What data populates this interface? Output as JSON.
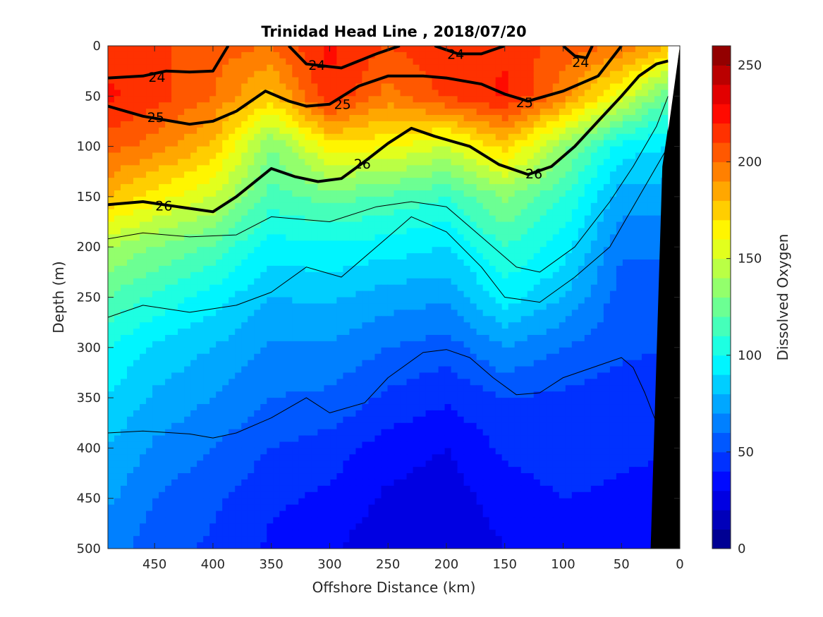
{
  "chart_data": {
    "type": "heatmap",
    "subtype": "filled-contour section",
    "title": "Trinidad Head Line , 2018/07/20",
    "xlabel": "Offshore Distance (km)",
    "ylabel": "Depth (m)",
    "xlim": [
      490,
      0
    ],
    "ylim": [
      0,
      500
    ],
    "x_reversed": true,
    "y_reversed": true,
    "xticks": [
      450,
      400,
      350,
      300,
      250,
      200,
      150,
      100,
      50,
      0
    ],
    "yticks": [
      0,
      50,
      100,
      150,
      200,
      250,
      300,
      350,
      400,
      450,
      500
    ],
    "colorbar": {
      "label": "Dissolved Oxygen",
      "range": [
        0,
        260
      ],
      "ticks": [
        0,
        50,
        100,
        150,
        200,
        250
      ],
      "colormap": "jet",
      "levels": 26
    },
    "oxygen_field": {
      "x": [
        490,
        450,
        400,
        350,
        300,
        250,
        200,
        150,
        100,
        50,
        10
      ],
      "depth": [
        0,
        50,
        100,
        150,
        200,
        250,
        300,
        350,
        400,
        450,
        500
      ],
      "values": [
        [
          215,
          212,
          205,
          200,
          222,
          210,
          218,
          218,
          205,
          200,
          180
        ],
        [
          222,
          215,
          200,
          175,
          220,
          195,
          212,
          222,
          195,
          155,
          120
        ],
        [
          205,
          195,
          178,
          130,
          165,
          162,
          150,
          175,
          135,
          95,
          90
        ],
        [
          180,
          165,
          150,
          115,
          125,
          118,
          110,
          132,
          110,
          75,
          75
        ],
        [
          140,
          130,
          118,
          95,
          98,
          95,
          90,
          110,
          95,
          62,
          62
        ],
        [
          120,
          108,
          95,
          80,
          82,
          75,
          72,
          95,
          80,
          55,
          55
        ],
        [
          100,
          88,
          80,
          68,
          68,
          60,
          55,
          70,
          60,
          52,
          50
        ],
        [
          90,
          78,
          70,
          60,
          58,
          48,
          42,
          50,
          48,
          45,
          45
        ],
        [
          80,
          68,
          60,
          50,
          45,
          35,
          30,
          42,
          45,
          42,
          40
        ],
        [
          72,
          60,
          52,
          42,
          38,
          28,
          25,
          35,
          40,
          38,
          38
        ],
        [
          65,
          55,
          48,
          38,
          32,
          22,
          20,
          30,
          38,
          35,
          35
        ]
      ]
    },
    "density_contours": [
      {
        "level": "24",
        "bold": true,
        "points": [
          [
            490,
            32
          ],
          [
            460,
            30
          ],
          [
            440,
            25
          ],
          [
            420,
            26
          ],
          [
            400,
            25
          ],
          [
            387,
            0
          ]
        ]
      },
      {
        "level": "24",
        "bold": true,
        "points": [
          [
            335,
            0
          ],
          [
            320,
            18
          ],
          [
            290,
            22
          ],
          [
            260,
            8
          ],
          [
            240,
            0
          ]
        ]
      },
      {
        "level": "24",
        "bold": true,
        "points": [
          [
            210,
            0
          ],
          [
            190,
            8
          ],
          [
            170,
            8
          ],
          [
            150,
            0
          ]
        ]
      },
      {
        "level": "24",
        "bold": true,
        "points": [
          [
            100,
            0
          ],
          [
            90,
            10
          ],
          [
            80,
            12
          ],
          [
            75,
            0
          ]
        ]
      },
      {
        "level": "25",
        "bold": true,
        "points": [
          [
            490,
            60
          ],
          [
            460,
            70
          ],
          [
            420,
            78
          ],
          [
            400,
            75
          ],
          [
            380,
            65
          ],
          [
            355,
            45
          ],
          [
            335,
            55
          ],
          [
            320,
            60
          ],
          [
            300,
            58
          ],
          [
            275,
            40
          ],
          [
            250,
            30
          ],
          [
            220,
            30
          ],
          [
            200,
            32
          ],
          [
            170,
            38
          ],
          [
            150,
            48
          ],
          [
            130,
            55
          ],
          [
            100,
            45
          ],
          [
            70,
            30
          ],
          [
            60,
            15
          ],
          [
            50,
            0
          ]
        ]
      },
      {
        "level": "26",
        "bold": true,
        "points": [
          [
            490,
            158
          ],
          [
            460,
            155
          ],
          [
            430,
            160
          ],
          [
            400,
            165
          ],
          [
            380,
            150
          ],
          [
            350,
            122
          ],
          [
            330,
            130
          ],
          [
            310,
            135
          ],
          [
            290,
            132
          ],
          [
            270,
            115
          ],
          [
            250,
            97
          ],
          [
            230,
            82
          ],
          [
            210,
            90
          ],
          [
            180,
            100
          ],
          [
            155,
            118
          ],
          [
            130,
            128
          ],
          [
            110,
            120
          ],
          [
            90,
            100
          ],
          [
            70,
            75
          ],
          [
            50,
            50
          ],
          [
            35,
            30
          ],
          [
            20,
            18
          ],
          [
            10,
            15
          ]
        ]
      },
      {
        "level": "",
        "bold": false,
        "points": [
          [
            490,
            192
          ],
          [
            460,
            186
          ],
          [
            420,
            190
          ],
          [
            380,
            188
          ],
          [
            350,
            170
          ],
          [
            300,
            175
          ],
          [
            260,
            160
          ],
          [
            230,
            155
          ],
          [
            200,
            160
          ],
          [
            170,
            190
          ],
          [
            140,
            220
          ],
          [
            120,
            225
          ],
          [
            90,
            200
          ],
          [
            60,
            155
          ],
          [
            40,
            120
          ],
          [
            20,
            80
          ],
          [
            10,
            50
          ]
        ]
      },
      {
        "level": "",
        "bold": false,
        "points": [
          [
            490,
            270
          ],
          [
            460,
            258
          ],
          [
            420,
            265
          ],
          [
            380,
            258
          ],
          [
            350,
            245
          ],
          [
            320,
            220
          ],
          [
            290,
            230
          ],
          [
            260,
            200
          ],
          [
            240,
            180
          ],
          [
            230,
            170
          ],
          [
            200,
            185
          ],
          [
            170,
            220
          ],
          [
            150,
            250
          ],
          [
            120,
            255
          ],
          [
            90,
            230
          ],
          [
            60,
            200
          ],
          [
            40,
            160
          ],
          [
            20,
            120
          ],
          [
            10,
            100
          ]
        ]
      },
      {
        "level": "",
        "bold": false,
        "points": [
          [
            490,
            385
          ],
          [
            460,
            383
          ],
          [
            420,
            386
          ],
          [
            400,
            390
          ],
          [
            380,
            385
          ],
          [
            350,
            370
          ],
          [
            320,
            350
          ],
          [
            300,
            365
          ],
          [
            270,
            355
          ],
          [
            250,
            330
          ],
          [
            220,
            305
          ],
          [
            200,
            302
          ],
          [
            180,
            310
          ],
          [
            160,
            330
          ],
          [
            140,
            347
          ],
          [
            120,
            345
          ],
          [
            100,
            330
          ],
          [
            70,
            318
          ],
          [
            50,
            310
          ],
          [
            40,
            320
          ],
          [
            30,
            345
          ],
          [
            20,
            375
          ]
        ]
      }
    ],
    "contour_labels": [
      {
        "text": "24",
        "x": 448,
        "depth": 31
      },
      {
        "text": "24",
        "x": 311,
        "depth": 19
      },
      {
        "text": "24",
        "x": 192,
        "depth": 8
      },
      {
        "text": "24",
        "x": 85,
        "depth": 16
      },
      {
        "text": "25",
        "x": 449,
        "depth": 71
      },
      {
        "text": "25",
        "x": 289,
        "depth": 58
      },
      {
        "text": "25",
        "x": 133,
        "depth": 56
      },
      {
        "text": "26",
        "x": 272,
        "depth": 117
      },
      {
        "text": "26",
        "x": 125,
        "depth": 127
      },
      {
        "text": "26",
        "x": 442,
        "depth": 159
      }
    ],
    "bathymetry": {
      "color": "#000000",
      "points": [
        [
          0,
          0
        ],
        [
          15,
          120
        ],
        [
          25,
          500
        ]
      ]
    }
  }
}
